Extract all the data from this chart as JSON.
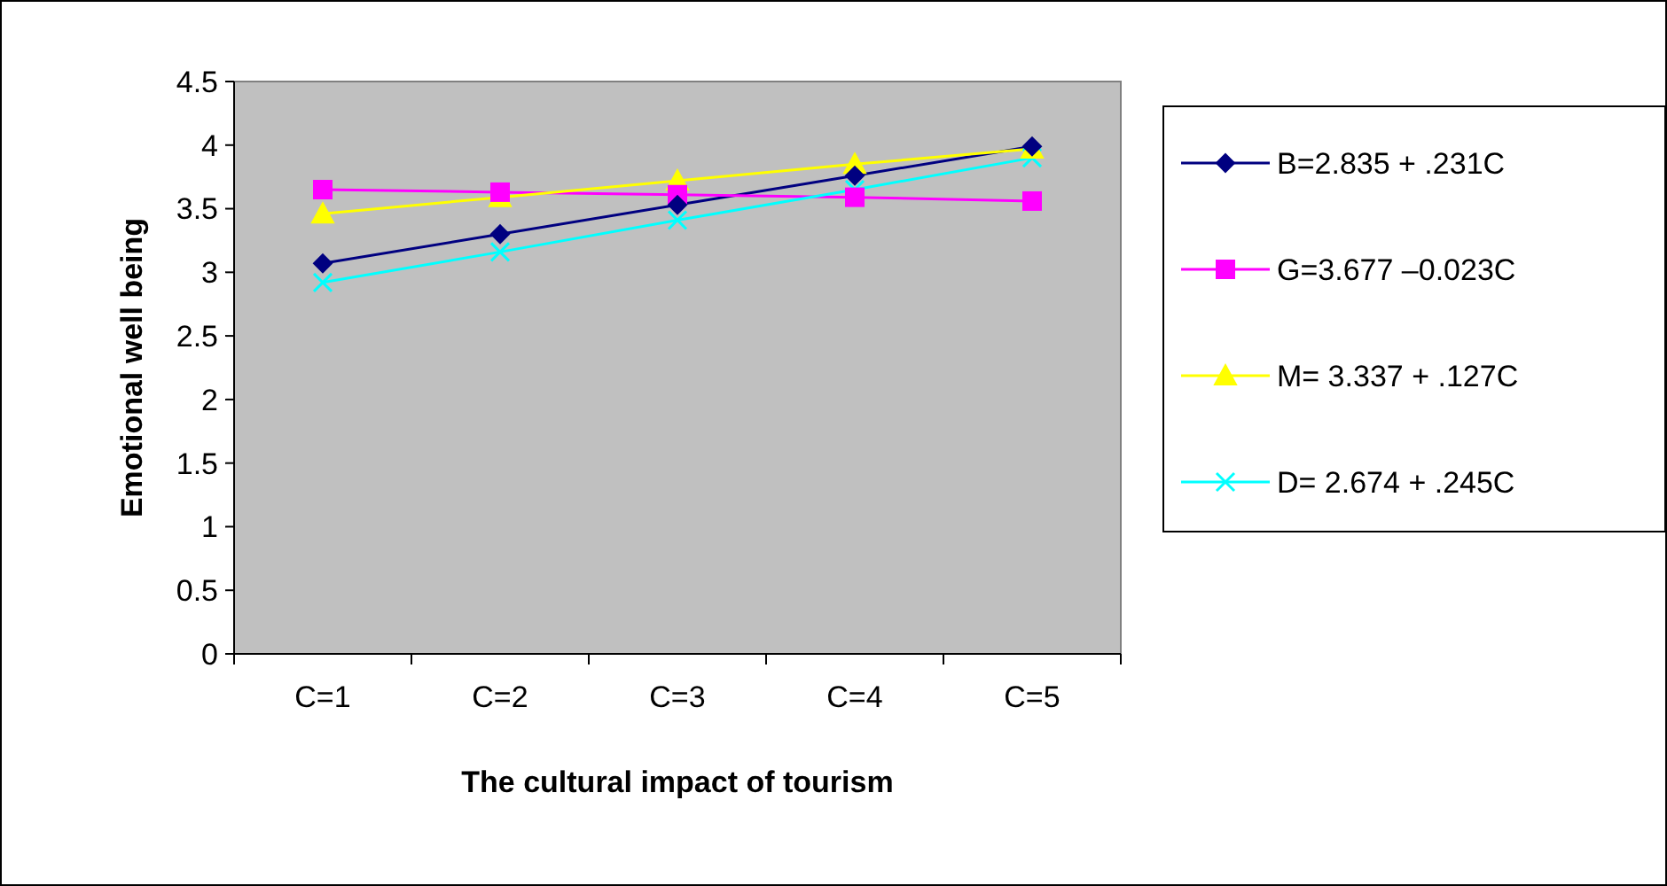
{
  "chart_data": {
    "type": "line",
    "xlabel": "The cultural impact of tourism",
    "ylabel": "Emotional well being",
    "categories": [
      "C=1",
      "C=2",
      "C=3",
      "C=4",
      "C=5"
    ],
    "series": [
      {
        "name": "B=2.835 + .231C",
        "color": "#000080",
        "marker": "diamond",
        "values": [
          3.07,
          3.3,
          3.53,
          3.76,
          3.99
        ]
      },
      {
        "name": "G=3.677 –0.023C",
        "color": "#ff00ff",
        "marker": "square",
        "values": [
          3.65,
          3.63,
          3.61,
          3.59,
          3.56
        ]
      },
      {
        "name": "M= 3.337 + .127C",
        "color": "#ffff00",
        "marker": "triangle",
        "values": [
          3.46,
          3.59,
          3.72,
          3.85,
          3.97
        ]
      },
      {
        "name": "D= 2.674 + .245C",
        "color": "#00ffff",
        "marker": "cross",
        "values": [
          2.92,
          3.16,
          3.41,
          3.65,
          3.9
        ]
      }
    ],
    "ylim": [
      0,
      4.5
    ],
    "yticks": [
      0,
      0.5,
      1,
      1.5,
      2,
      2.5,
      3,
      3.5,
      4,
      4.5
    ],
    "legend": "right"
  }
}
